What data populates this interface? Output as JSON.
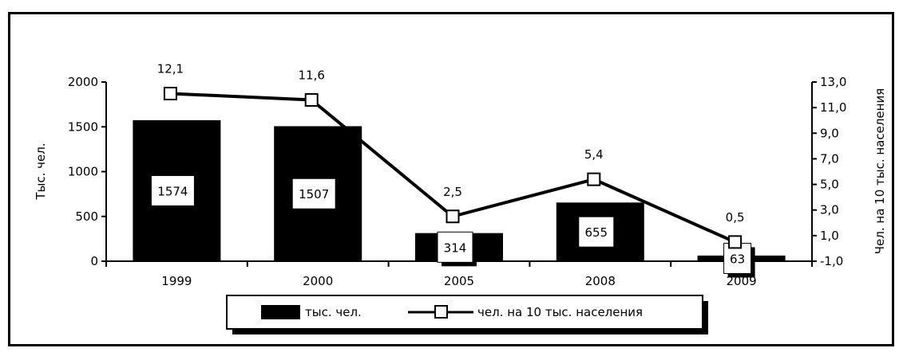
{
  "chart_data": {
    "type": "bar+line",
    "categories": [
      "1999",
      "2000",
      "2005",
      "2008",
      "2009"
    ],
    "series": [
      {
        "name": "тыс. чел.",
        "type": "bar",
        "axis": "left",
        "values": [
          1574,
          1507,
          314,
          655,
          63
        ],
        "value_labels": [
          "1574",
          "1507",
          "314",
          "655",
          "63"
        ]
      },
      {
        "name": "чел. на 10 тыс. населения",
        "type": "line",
        "axis": "right",
        "values": [
          12.1,
          11.6,
          2.5,
          5.4,
          0.5
        ],
        "value_labels": [
          "12,1",
          "11,6",
          "2,5",
          "5,4",
          "0,5"
        ]
      }
    ],
    "y_left": {
      "label": "Тыс. чел.",
      "ylim": [
        0,
        2000
      ],
      "ticks": [
        "0",
        "500",
        "1000",
        "1500",
        "2000"
      ]
    },
    "y_right": {
      "label": "Чел. на 10 тыс. населения",
      "ylim": [
        -1.0,
        13.0
      ],
      "ticks": [
        "-1,0",
        "1,0",
        "3,0",
        "5,0",
        "7,0",
        "9,0",
        "11,0",
        "13,0"
      ]
    },
    "legend_placement": "bottom",
    "grid": false,
    "colors": {
      "bar": "#000000",
      "line": "#000000",
      "marker_fill": "#ffffff"
    }
  }
}
